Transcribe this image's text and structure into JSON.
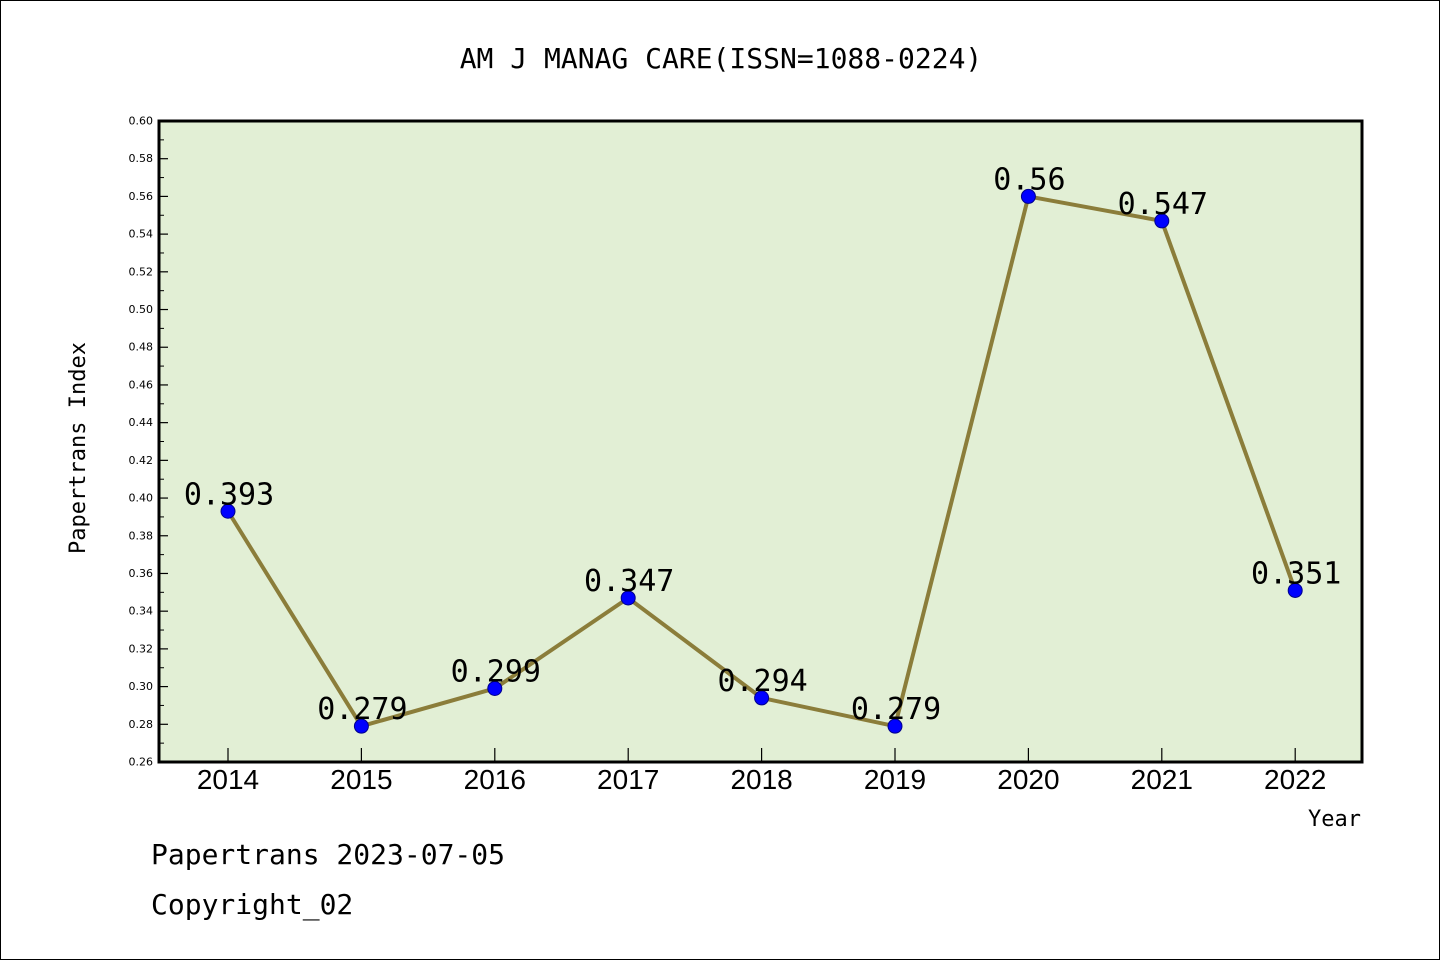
{
  "chart_data": {
    "type": "line",
    "title": "AM J MANAG CARE(ISSN=1088-0224)",
    "xlabel": "Year",
    "ylabel": "Papertrans Index",
    "categories": [
      "2014",
      "2015",
      "2016",
      "2017",
      "2018",
      "2019",
      "2020",
      "2021",
      "2022"
    ],
    "series": [
      {
        "values": [
          0.393,
          0.279,
          0.299,
          0.347,
          0.294,
          0.279,
          0.56,
          0.547,
          0.351
        ],
        "labels": [
          "0.393",
          "0.279",
          "0.299",
          "0.347",
          "0.294",
          "0.279",
          "0.56",
          "0.547",
          "0.351"
        ]
      }
    ],
    "ylim": [
      0.26,
      0.6
    ],
    "yticks": [
      "0.26",
      "0.28",
      "0.30",
      "0.32",
      "0.34",
      "0.36",
      "0.38",
      "0.40",
      "0.42",
      "0.44",
      "0.46",
      "0.48",
      "0.50",
      "0.52",
      "0.54",
      "0.56",
      "0.58",
      "0.60"
    ],
    "grid": false,
    "colors": {
      "plot_background": "#e2efd5",
      "line": "#8b7d3a",
      "marker": "#0000ff"
    }
  },
  "footer": {
    "date_line": "Papertrans 2023-07-05",
    "copyright": "Copyright_02"
  }
}
